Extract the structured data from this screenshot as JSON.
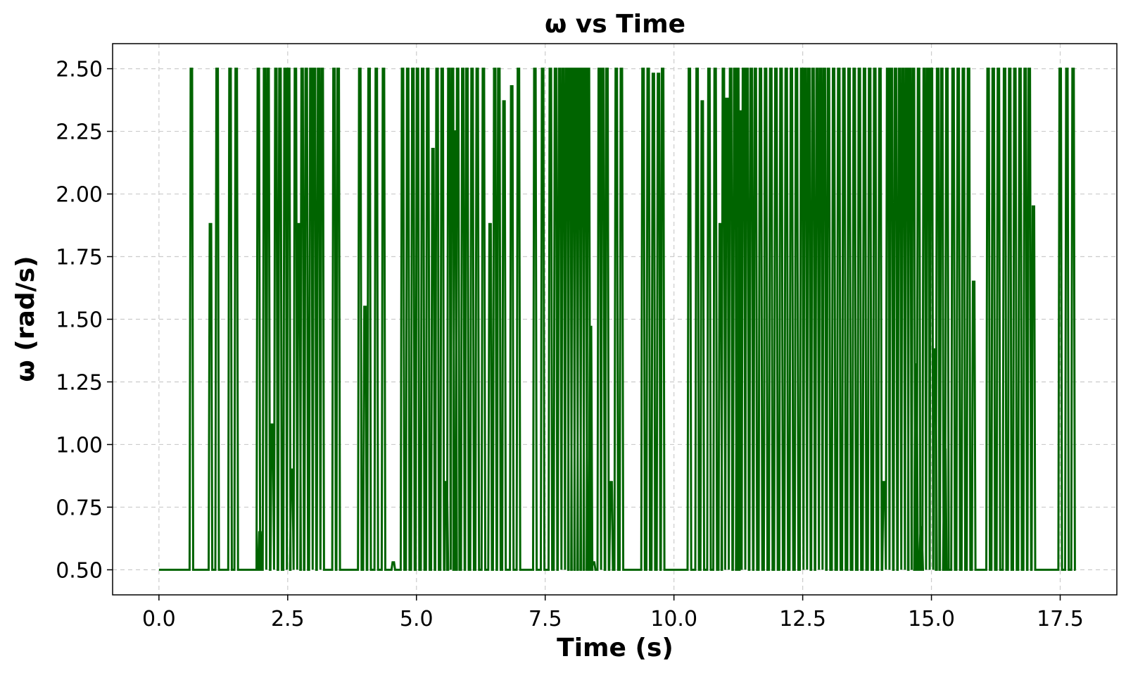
{
  "chart_data": {
    "type": "line",
    "title": "ω vs Time",
    "xlabel": "Time (s)",
    "ylabel": "ω (rad/s)",
    "xlim": [
      -0.9,
      18.6
    ],
    "ylim": [
      0.4,
      2.6
    ],
    "xticks": [
      0.0,
      2.5,
      5.0,
      7.5,
      10.0,
      12.5,
      15.0,
      17.5
    ],
    "xtick_labels": [
      "0.0",
      "2.5",
      "5.0",
      "7.5",
      "10.0",
      "12.5",
      "15.0",
      "17.5"
    ],
    "yticks": [
      0.5,
      0.75,
      1.0,
      1.25,
      1.5,
      1.75,
      2.0,
      2.25,
      2.5
    ],
    "ytick_labels": [
      "0.50",
      "0.75",
      "1.00",
      "1.25",
      "1.50",
      "1.75",
      "2.00",
      "2.25",
      "2.50"
    ],
    "grid": true,
    "color": "#006400",
    "baseline": 0.5,
    "x_end": 17.8,
    "spikes": [
      [
        0.63,
        2.5
      ],
      [
        1.0,
        1.88
      ],
      [
        1.13,
        2.5
      ],
      [
        1.38,
        2.5
      ],
      [
        1.5,
        2.5
      ],
      [
        1.93,
        2.5
      ],
      [
        1.96,
        0.65
      ],
      [
        2.05,
        2.5
      ],
      [
        2.12,
        2.5
      ],
      [
        2.2,
        1.08
      ],
      [
        2.27,
        2.5
      ],
      [
        2.35,
        2.5
      ],
      [
        2.45,
        2.5
      ],
      [
        2.52,
        2.5
      ],
      [
        2.58,
        0.9
      ],
      [
        2.65,
        2.5
      ],
      [
        2.72,
        1.88
      ],
      [
        2.78,
        2.5
      ],
      [
        2.86,
        2.5
      ],
      [
        2.95,
        2.5
      ],
      [
        3.02,
        2.5
      ],
      [
        3.1,
        2.5
      ],
      [
        3.17,
        2.5
      ],
      [
        3.4,
        2.5
      ],
      [
        3.48,
        2.5
      ],
      [
        3.9,
        2.5
      ],
      [
        4.0,
        1.55
      ],
      [
        4.08,
        2.5
      ],
      [
        4.22,
        2.5
      ],
      [
        4.36,
        2.5
      ],
      [
        4.55,
        0.53
      ],
      [
        4.73,
        2.5
      ],
      [
        4.83,
        2.5
      ],
      [
        4.93,
        2.5
      ],
      [
        5.02,
        2.5
      ],
      [
        5.12,
        2.5
      ],
      [
        5.22,
        2.5
      ],
      [
        5.32,
        2.18
      ],
      [
        5.4,
        2.5
      ],
      [
        5.5,
        2.5
      ],
      [
        5.58,
        0.85
      ],
      [
        5.63,
        2.5
      ],
      [
        5.7,
        2.5
      ],
      [
        5.75,
        2.25
      ],
      [
        5.8,
        2.5
      ],
      [
        5.9,
        2.5
      ],
      [
        5.98,
        2.5
      ],
      [
        6.08,
        2.5
      ],
      [
        6.18,
        2.5
      ],
      [
        6.3,
        2.5
      ],
      [
        6.43,
        1.88
      ],
      [
        6.52,
        2.5
      ],
      [
        6.6,
        2.5
      ],
      [
        6.7,
        2.37
      ],
      [
        6.85,
        2.43
      ],
      [
        6.98,
        2.5
      ],
      [
        7.3,
        2.5
      ],
      [
        7.45,
        2.5
      ],
      [
        7.6,
        2.5
      ],
      [
        7.7,
        2.5
      ],
      [
        7.78,
        2.5
      ],
      [
        7.85,
        2.5
      ],
      [
        7.92,
        2.5
      ],
      [
        7.98,
        2.5
      ],
      [
        8.04,
        2.5
      ],
      [
        8.1,
        2.5
      ],
      [
        8.16,
        2.5
      ],
      [
        8.22,
        2.5
      ],
      [
        8.28,
        2.5
      ],
      [
        8.34,
        2.5
      ],
      [
        8.38,
        1.47
      ],
      [
        8.44,
        0.53
      ],
      [
        8.55,
        2.5
      ],
      [
        8.62,
        2.5
      ],
      [
        8.7,
        2.5
      ],
      [
        8.78,
        0.85
      ],
      [
        8.88,
        2.5
      ],
      [
        8.98,
        2.5
      ],
      [
        9.4,
        2.5
      ],
      [
        9.5,
        2.5
      ],
      [
        9.6,
        2.48
      ],
      [
        9.7,
        2.48
      ],
      [
        9.78,
        2.5
      ],
      [
        10.3,
        2.5
      ],
      [
        10.45,
        2.5
      ],
      [
        10.55,
        2.37
      ],
      [
        10.68,
        2.5
      ],
      [
        10.8,
        2.5
      ],
      [
        10.9,
        1.88
      ],
      [
        10.96,
        2.5
      ],
      [
        11.03,
        2.38
      ],
      [
        11.1,
        2.5
      ],
      [
        11.18,
        2.5
      ],
      [
        11.24,
        2.5
      ],
      [
        11.28,
        2.33
      ],
      [
        11.35,
        2.5
      ],
      [
        11.42,
        2.5
      ],
      [
        11.5,
        2.5
      ],
      [
        11.58,
        2.5
      ],
      [
        11.68,
        2.5
      ],
      [
        11.78,
        2.5
      ],
      [
        11.88,
        2.5
      ],
      [
        11.98,
        2.5
      ],
      [
        12.08,
        2.5
      ],
      [
        12.18,
        2.5
      ],
      [
        12.28,
        2.5
      ],
      [
        12.38,
        2.5
      ],
      [
        12.48,
        2.5
      ],
      [
        12.55,
        2.5
      ],
      [
        12.62,
        2.5
      ],
      [
        12.7,
        2.5
      ],
      [
        12.78,
        2.5
      ],
      [
        12.85,
        2.5
      ],
      [
        12.92,
        2.5
      ],
      [
        13.0,
        2.5
      ],
      [
        13.1,
        2.5
      ],
      [
        13.2,
        2.5
      ],
      [
        13.3,
        2.5
      ],
      [
        13.4,
        2.5
      ],
      [
        13.5,
        2.5
      ],
      [
        13.6,
        2.5
      ],
      [
        13.7,
        2.5
      ],
      [
        13.8,
        2.5
      ],
      [
        13.9,
        2.5
      ],
      [
        14.0,
        2.5
      ],
      [
        14.08,
        0.85
      ],
      [
        14.15,
        2.5
      ],
      [
        14.22,
        2.5
      ],
      [
        14.3,
        2.5
      ],
      [
        14.38,
        2.5
      ],
      [
        14.45,
        2.5
      ],
      [
        14.52,
        2.5
      ],
      [
        14.58,
        2.5
      ],
      [
        14.65,
        2.5
      ],
      [
        14.7,
        1.32
      ],
      [
        14.75,
        2.5
      ],
      [
        14.8,
        0.67
      ],
      [
        14.86,
        2.5
      ],
      [
        14.93,
        2.5
      ],
      [
        15.0,
        2.5
      ],
      [
        15.07,
        1.38
      ],
      [
        15.12,
        2.5
      ],
      [
        15.2,
        2.5
      ],
      [
        15.26,
        0.98
      ],
      [
        15.3,
        2.5
      ],
      [
        15.42,
        2.5
      ],
      [
        15.52,
        2.5
      ],
      [
        15.62,
        2.5
      ],
      [
        15.72,
        2.5
      ],
      [
        15.82,
        1.65
      ],
      [
        16.1,
        2.5
      ],
      [
        16.2,
        2.5
      ],
      [
        16.3,
        2.5
      ],
      [
        16.42,
        2.5
      ],
      [
        16.52,
        2.5
      ],
      [
        16.62,
        2.5
      ],
      [
        16.72,
        2.5
      ],
      [
        16.82,
        2.5
      ],
      [
        16.9,
        2.5
      ],
      [
        16.98,
        1.95
      ],
      [
        17.5,
        2.5
      ],
      [
        17.63,
        2.5
      ],
      [
        17.75,
        2.5
      ]
    ]
  }
}
